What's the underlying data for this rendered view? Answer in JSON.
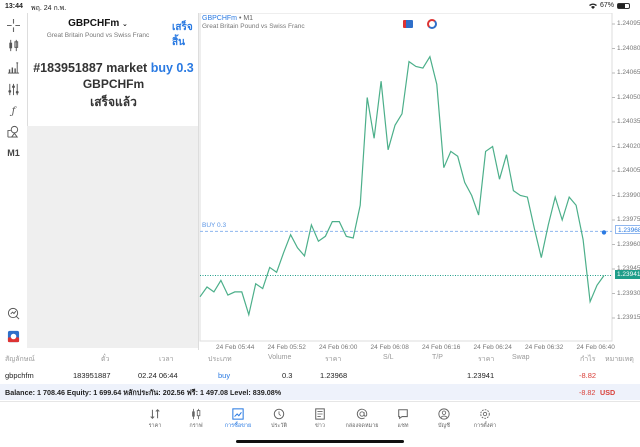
{
  "status_bar": {
    "time": "13:44",
    "date": "พฤ. 24 ก.พ.",
    "battery": "67%"
  },
  "left_toolbar": {
    "items": [
      {
        "name": "crosshair-icon"
      },
      {
        "name": "candlestick-icon"
      },
      {
        "name": "indicators-icon"
      },
      {
        "name": "settings-sliders-icon"
      },
      {
        "name": "function-icon"
      },
      {
        "name": "objects-icon"
      },
      {
        "name": "timeframe",
        "label": "M1"
      }
    ],
    "bottom": [
      {
        "name": "chart-search-icon"
      },
      {
        "name": "trade-app-icon"
      }
    ]
  },
  "order_panel": {
    "symbol": "GBPCHFm",
    "symbol_chevron": "⌄",
    "description": "Great Britain Pound vs Swiss Franc",
    "done_button": "เสร็จสิ้น",
    "result_prefix": "#183951887 market ",
    "result_action": "buy 0.3",
    "result_symbol": "GBPCHFm",
    "result_status": "เสร็จแล้ว"
  },
  "chart": {
    "title_symbol": "GBPCHFm",
    "title_timeframe": "• M1",
    "subtitle": "Great Britain Pound vs Swiss Franc",
    "buy_line_label": "BUY 0.3",
    "buy_price_tag": "1.23968",
    "bid_price_tag": "1.23941",
    "colors": {
      "line": "#4caf8a",
      "buy_line": "#8fb6ee",
      "bid_line": "#1f9e8a"
    }
  },
  "chart_data": {
    "type": "line",
    "title": "GBPCHFm • M1",
    "subtitle": "Great Britain Pound vs Swiss Franc",
    "xlabel": "",
    "ylabel": "",
    "x_ticks": [
      "24 Feb 05:44",
      "24 Feb 05:52",
      "24 Feb 06:00",
      "24 Feb 06:08",
      "24 Feb 06:16",
      "24 Feb 06:24",
      "24 Feb 06:32",
      "24 Feb 06:40"
    ],
    "y_ticks": [
      "1.24095",
      "1.24080",
      "1.24065",
      "1.24050",
      "1.24035",
      "1.24020",
      "1.24005",
      "1.23990",
      "1.23975",
      "1.23960",
      "1.23945",
      "1.23930",
      "1.23915"
    ],
    "ylim": [
      1.23905,
      1.24105
    ],
    "horizontal_lines": [
      {
        "label": "BUY 0.3",
        "value": 1.23968
      },
      {
        "label": "Bid",
        "value": 1.23941
      }
    ],
    "series": [
      {
        "name": "GBPCHFm close",
        "values": [
          1.23928,
          1.23934,
          1.23931,
          1.23938,
          1.23929,
          1.23931,
          1.23931,
          1.23917,
          1.23936,
          1.23933,
          1.23946,
          1.23943,
          1.23955,
          1.23966,
          1.23958,
          1.23953,
          1.23972,
          1.23962,
          1.23965,
          1.23974,
          1.23974,
          1.23965,
          1.23964,
          1.23984,
          1.2405,
          1.24025,
          1.2406,
          1.24018,
          1.24033,
          1.2404,
          1.24072,
          1.24069,
          1.24068,
          1.24075,
          1.24058,
          1.24007,
          1.24017,
          1.24014,
          1.23998,
          1.2399,
          1.23978,
          1.24017,
          1.2402,
          1.24,
          1.24015,
          1.23993,
          1.2399,
          1.23989,
          1.2397,
          1.23952,
          1.23972,
          1.23989,
          1.23975,
          1.23989,
          1.23984,
          1.23963,
          1.23925,
          1.23935,
          1.23941
        ]
      }
    ],
    "grid": false,
    "legend": "none"
  },
  "positions_table": {
    "headers": [
      "สัญลักษณ์",
      "ตั๋ว",
      "เวลา",
      "ประเภท",
      "Volume",
      "ราคา",
      "S/L",
      "T/P",
      "ราคา",
      "Swap",
      "กำไร",
      "หมายเหตุ"
    ],
    "rows": [
      {
        "symbol": "gbpchfm",
        "ticket": "183951887",
        "time": "02.24 06:44",
        "type": "buy",
        "volume": "0.3",
        "open_price": "1.23968",
        "sl": "",
        "tp": "",
        "current_price": "1.23941",
        "swap": "",
        "profit": "-8.82",
        "comment": ""
      }
    ]
  },
  "summary": {
    "text": "Balance: 1 708.46 Equity: 1 699.64 หลักประกัน: 202.56 ฟรี: 1 497.08 Level: 839.08%",
    "profit": "-8.82",
    "currency": "USD"
  },
  "bottom_nav": {
    "items": [
      {
        "label": "ราคา",
        "icon": "quotes-icon",
        "active": false
      },
      {
        "label": "กราฟ",
        "icon": "chart-icon",
        "active": false
      },
      {
        "label": "การซื้อขาย",
        "icon": "trade-icon",
        "active": true
      },
      {
        "label": "ประวัติ",
        "icon": "history-icon",
        "active": false
      },
      {
        "label": "ข่าว",
        "icon": "news-icon",
        "active": false
      },
      {
        "label": "กล่องจดหมาย",
        "icon": "mailbox-icon",
        "active": false
      },
      {
        "label": "แชท",
        "icon": "chat-icon",
        "active": false
      },
      {
        "label": "บัญชี",
        "icon": "account-icon",
        "active": false
      },
      {
        "label": "การตั้งค่า",
        "icon": "settings-icon",
        "active": false
      }
    ]
  }
}
